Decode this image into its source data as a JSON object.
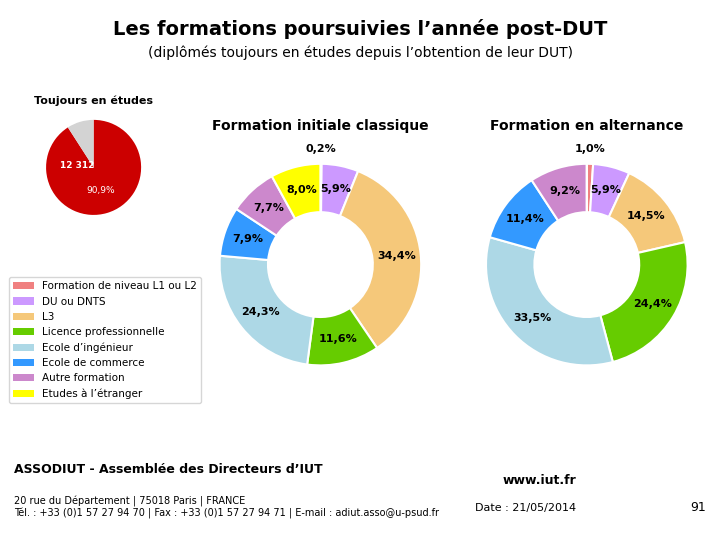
{
  "title": "Les formations poursuivies l’année post-DUT",
  "subtitle": "(diplômés toujours en études depuis l’obtention de leur DUT)",
  "annotations": [
    "www.iut.fr",
    "Date : 21/05/2014",
    "ASSODIUT - Assemblée des Directeurs d’IUT",
    "20 rue du Département | 75018 Paris | FRANCE\nTél. : +33 (0)1 57 27 94 70 | Fax : +33 (0)1 57 27 94 71 | E-mail : adiut.asso@u-psud.fr",
    "91"
  ],
  "chart_data": [
    {
      "type": "pie",
      "title": "Toujours en études",
      "values": [
        90.9,
        9.1
      ],
      "value_labels": [
        "90,9%",
        null
      ],
      "colors": [
        "#cc0000",
        "#d3d3d3"
      ],
      "data_labels": true,
      "annotations": [
        "12 312"
      ]
    },
    {
      "type": "donut",
      "title": "Formation initiale classique",
      "categories": [
        "Formation de niveau L1 ou L2",
        "DU ou DNTS",
        "L3",
        "Licence professionnelle",
        "Ecole d’ingénieur",
        "Ecole de commerce",
        "Autre formation",
        "Etudes à l’étranger"
      ],
      "values": [
        0.2,
        5.9,
        34.4,
        11.6,
        24.3,
        7.9,
        7.7,
        8.0
      ],
      "value_labels": [
        "0,2%",
        "5,9%",
        "34,4%",
        "11,6%",
        "24,3%",
        "7,9%",
        "7,7%",
        "8,0%"
      ],
      "colors": [
        "#f08080",
        "#cc99ff",
        "#f5c87a",
        "#66cc00",
        "#add8e6",
        "#3399ff",
        "#cc88cc",
        "#ffff00"
      ],
      "data_labels": true,
      "legend": "center left"
    },
    {
      "type": "donut",
      "title": "Formation en alternance",
      "categories": [
        "Formation de niveau L1 ou L2",
        "DU ou DNTS",
        "L3",
        "Licence professionnelle",
        "Ecole d’ingénieur",
        "Ecole de commerce",
        "Autre formation",
        "Etudes à l’étranger"
      ],
      "values": [
        1.0,
        5.9,
        14.5,
        24.4,
        33.5,
        11.4,
        9.2,
        0.0
      ],
      "value_labels": [
        "1,0%",
        "5,9%",
        "14,5%",
        "24,4%",
        "33,5%",
        "11,4%",
        "9,2%",
        null
      ],
      "colors": [
        "#f08080",
        "#cc99ff",
        "#f5c87a",
        "#66cc00",
        "#add8e6",
        "#3399ff",
        "#cc88cc",
        "#ffff00"
      ],
      "data_labels": true
    }
  ]
}
